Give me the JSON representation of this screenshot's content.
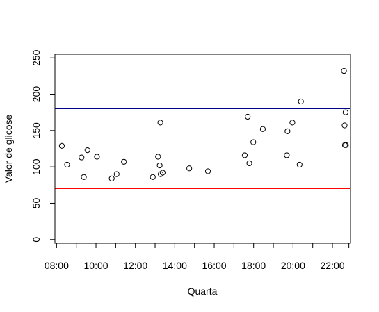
{
  "chart_data": {
    "type": "scatter",
    "title": "",
    "xlabel": "Quarta",
    "ylabel": "Valor de glicose",
    "xlim": [
      "07:55",
      "22:55"
    ],
    "ylim": [
      -5,
      255
    ],
    "x_ticks": [
      "08:00",
      "09:00",
      "10:00",
      "11:00",
      "12:00",
      "13:00",
      "14:00",
      "15:00",
      "16:00",
      "17:00",
      "18:00",
      "19:00",
      "20:00",
      "21:00",
      "22:00",
      "22:50"
    ],
    "x_tick_labels": [
      "08:00",
      "10:00",
      "12:00",
      "14:00",
      "16:00",
      "18:00",
      "20:00",
      "22:00"
    ],
    "y_ticks": [
      0,
      50,
      100,
      150,
      200,
      250
    ],
    "y_tick_labels": [
      "0",
      "50",
      "100",
      "150",
      "200",
      "250"
    ],
    "reference_lines": [
      {
        "y": 180,
        "color": "#00008b"
      },
      {
        "y": 70,
        "color": "#ff0000"
      }
    ],
    "series": [
      {
        "x": [
          "08:16",
          "08:32",
          "09:16",
          "09:23",
          "09:34",
          "10:03",
          "10:48",
          "11:03",
          "11:25",
          "12:53",
          "13:09",
          "13:16",
          "13:14",
          "13:17",
          "13:23",
          "14:44",
          "15:41",
          "17:33",
          "17:42",
          "17:47",
          "17:59",
          "18:28",
          "19:41",
          "19:43",
          "19:58",
          "20:20",
          "20:24",
          "22:35",
          "22:37",
          "22:38",
          "22:40",
          "22:41"
        ],
        "y": [
          129,
          103,
          113,
          86,
          123,
          114,
          84,
          90,
          107,
          86,
          114,
          161,
          102,
          90,
          92,
          98,
          94,
          116,
          169,
          105,
          134,
          152,
          116,
          149,
          161,
          103,
          190,
          232,
          157,
          130,
          175,
          130
        ]
      }
    ]
  }
}
